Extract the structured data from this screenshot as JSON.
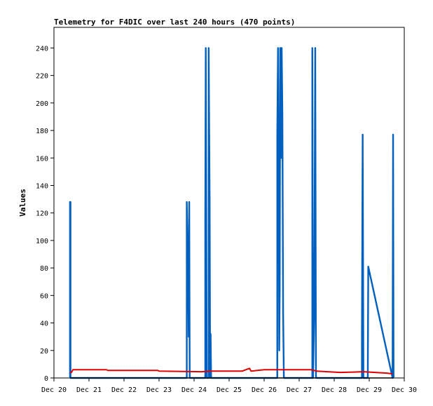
{
  "chart_data": {
    "type": "line",
    "title": "Telemetry for F4DIC over last 240 hours (470 points)",
    "xlabel": "",
    "ylabel": "Values",
    "xlim": [
      "Dec 20",
      "Dec 30"
    ],
    "ylim": [
      0,
      255
    ],
    "x_ticks": [
      "Dec 20",
      "Dec 21",
      "Dec 22",
      "Dec 23",
      "Dec 24",
      "Dec 25",
      "Dec 26",
      "Dec 27",
      "Dec 28",
      "Dec 29",
      "Dec 30"
    ],
    "y_ticks": [
      0,
      20,
      40,
      60,
      80,
      100,
      120,
      140,
      160,
      180,
      200,
      220,
      240
    ],
    "grid": false,
    "legend": "none",
    "series": [
      {
        "color": "#0060c0",
        "points": [
          [
            "Dec 20 11:00",
            0
          ],
          [
            "Dec 20 11:00",
            128
          ],
          [
            "Dec 20 11:20",
            128
          ],
          [
            "Dec 20 11:20",
            0
          ],
          [
            "Dec 23 19:00",
            0
          ],
          [
            "Dec 23 19:00",
            128
          ],
          [
            "Dec 23 19:30",
            100
          ],
          [
            "Dec 23 20:00",
            66
          ],
          [
            "Dec 23 20:20",
            30
          ],
          [
            "Dec 23 20:40",
            128
          ],
          [
            "Dec 23 21:00",
            0
          ],
          [
            "Dec 24 07:40",
            0
          ],
          [
            "Dec 24 07:40",
            112
          ],
          [
            "Dec 24 08:00",
            240
          ],
          [
            "Dec 24 08:20",
            128
          ],
          [
            "Dec 24 08:40",
            0
          ],
          [
            "Dec 24 10:00",
            0
          ],
          [
            "Dec 24 10:00",
            240
          ],
          [
            "Dec 24 10:40",
            128
          ],
          [
            "Dec 24 11:00",
            0
          ],
          [
            "Dec 24 11:20",
            32
          ],
          [
            "Dec 24 11:40",
            0
          ],
          [
            "Dec 26 09:00",
            0
          ],
          [
            "Dec 26 09:00",
            177
          ],
          [
            "Dec 26 09:30",
            240
          ],
          [
            "Dec 26 10:00",
            145
          ],
          [
            "Dec 26 10:20",
            20
          ],
          [
            "Dec 26 10:40",
            64
          ],
          [
            "Dec 26 11:00",
            240
          ],
          [
            "Dec 26 11:30",
            160
          ],
          [
            "Dec 26 12:00",
            240
          ],
          [
            "Dec 26 12:30",
            193
          ],
          [
            "Dec 26 13:00",
            48
          ],
          [
            "Dec 26 13:30",
            0
          ],
          [
            "Dec 27 09:00",
            0
          ],
          [
            "Dec 27 09:00",
            240
          ],
          [
            "Dec 27 09:30",
            0
          ],
          [
            "Dec 27 10:20",
            48
          ],
          [
            "Dec 27 11:00",
            240
          ],
          [
            "Dec 27 11:30",
            0
          ],
          [
            "Dec 28 19:00",
            0
          ],
          [
            "Dec 28 19:00",
            32
          ],
          [
            "Dec 28 19:30",
            177
          ],
          [
            "Dec 28 20:00",
            0
          ],
          [
            "Dec 28 23:00",
            0
          ],
          [
            "Dec 28 23:20",
            81
          ],
          [
            "Dec 29 16:00",
            0
          ],
          [
            "Dec 29 16:20",
            177
          ],
          [
            "Dec 29 16:40",
            0
          ]
        ]
      },
      {
        "color": "#e00000",
        "points": [
          [
            "Dec 20 11:00",
            4
          ],
          [
            "Dec 20 12:00",
            4
          ],
          [
            "Dec 20 13:00",
            6
          ],
          [
            "Dec 21 12:00",
            6
          ],
          [
            "Dec 21 13:00",
            5.5
          ],
          [
            "Dec 22 23:00",
            5.5
          ],
          [
            "Dec 23 00:00",
            5
          ],
          [
            "Dec 24 05:00",
            4.5
          ],
          [
            "Dec 24 12:00",
            5
          ],
          [
            "Dec 25 09:00",
            5
          ],
          [
            "Dec 25 14:00",
            7
          ],
          [
            "Dec 25 15:00",
            5
          ],
          [
            "Dec 26 00:00",
            6
          ],
          [
            "Dec 26 12:00",
            6
          ],
          [
            "Dec 27 08:00",
            6
          ],
          [
            "Dec 27 12:00",
            5
          ],
          [
            "Dec 28 04:00",
            4
          ],
          [
            "Dec 28 20:00",
            4.5
          ],
          [
            "Dec 29 04:00",
            4
          ],
          [
            "Dec 29 12:00",
            3.5
          ],
          [
            "Dec 29 16:00",
            3
          ]
        ]
      },
      {
        "color": "#000000",
        "points": [
          [
            "Dec 20 11:00",
            0
          ],
          [
            "Dec 29 16:40",
            0
          ]
        ]
      }
    ]
  }
}
